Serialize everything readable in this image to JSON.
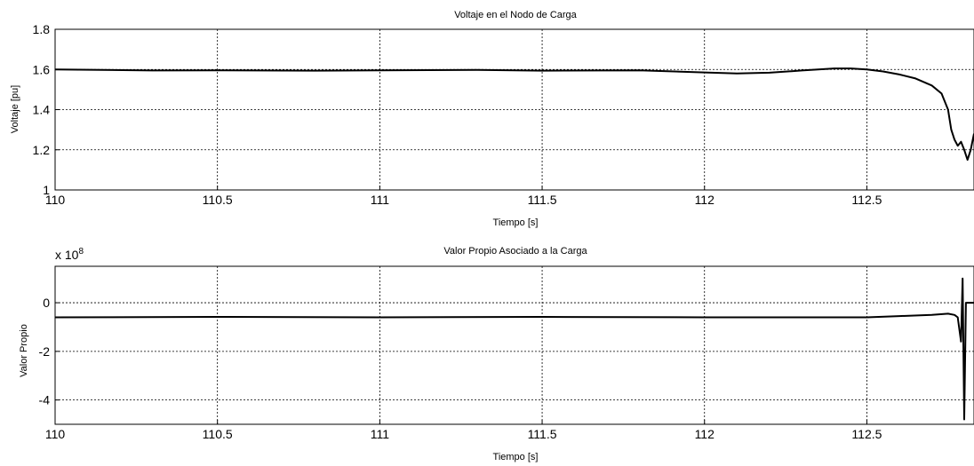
{
  "chart_data": [
    {
      "type": "line",
      "title": "Voltaje en el Nodo de Carga",
      "xlabel": "Tiempo [s]",
      "ylabel": "Voltaje [pu]",
      "xlim": [
        110,
        112.83
      ],
      "ylim": [
        1,
        1.8
      ],
      "xticks": [
        110,
        110.5,
        111,
        111.5,
        112,
        112.5
      ],
      "xtick_labels": [
        "110",
        "110.5",
        "111",
        "111.5",
        "112",
        "112.5"
      ],
      "yticks": [
        1,
        1.2,
        1.4,
        1.6,
        1.8
      ],
      "ytick_labels": [
        "1",
        "1.2",
        "1.4",
        "1.6",
        "1.8"
      ],
      "grid": true,
      "series": [
        {
          "x": [
            110,
            110.3,
            110.5,
            110.8,
            111,
            111.3,
            111.5,
            111.8,
            112,
            112.1,
            112.2,
            112.3,
            112.4,
            112.45,
            112.5,
            112.55,
            112.6,
            112.65,
            112.7,
            112.73,
            112.75,
            112.76,
            112.77,
            112.78,
            112.79,
            112.8,
            112.81,
            112.82,
            112.83
          ],
          "y": [
            1.6,
            1.595,
            1.596,
            1.594,
            1.596,
            1.598,
            1.594,
            1.596,
            1.585,
            1.58,
            1.584,
            1.595,
            1.605,
            1.605,
            1.6,
            1.59,
            1.575,
            1.555,
            1.52,
            1.48,
            1.4,
            1.3,
            1.25,
            1.22,
            1.24,
            1.2,
            1.15,
            1.2,
            1.28
          ]
        }
      ]
    },
    {
      "type": "line",
      "title": "Valor Propio Asociado a la Carga",
      "xlabel": "Tiempo [s]",
      "ylabel": "Valor Propio",
      "y_multiplier": "x 10",
      "y_multiplier_exponent": "8",
      "xlim": [
        110,
        112.83
      ],
      "ylim": [
        -5,
        1.5
      ],
      "xticks": [
        110,
        110.5,
        111,
        111.5,
        112,
        112.5
      ],
      "xtick_labels": [
        "110",
        "110.5",
        "111",
        "111.5",
        "112",
        "112.5"
      ],
      "yticks": [
        -4,
        -2,
        0
      ],
      "ytick_labels": [
        "-4",
        "-2",
        "0"
      ],
      "grid": true,
      "series": [
        {
          "x": [
            110,
            110.5,
            111,
            111.5,
            112,
            112.5,
            112.6,
            112.7,
            112.75,
            112.77,
            112.78,
            112.79,
            112.795,
            112.8,
            112.805,
            112.81,
            112.83
          ],
          "y": [
            -0.6,
            -0.58,
            -0.6,
            -0.58,
            -0.6,
            -0.6,
            -0.55,
            -0.5,
            -0.45,
            -0.5,
            -0.6,
            -1.6,
            1.0,
            -4.8,
            0.0,
            0.0,
            0.0
          ]
        }
      ]
    }
  ]
}
